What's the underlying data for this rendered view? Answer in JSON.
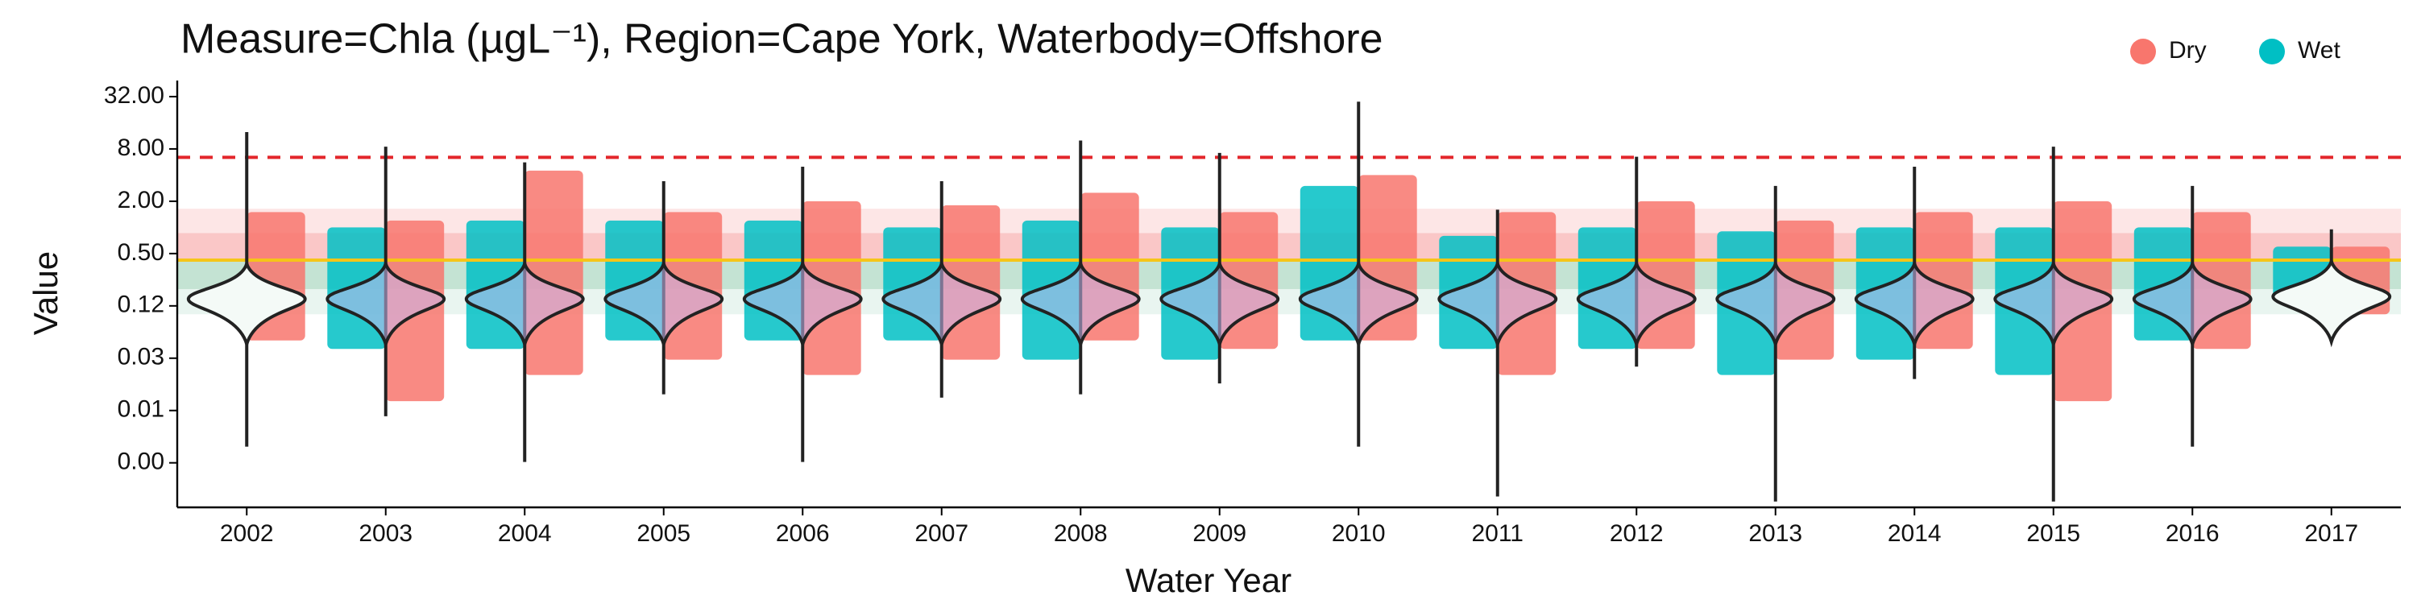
{
  "chart_data": {
    "type": "violin",
    "title": "Measure=Chla (µgL⁻¹), Region=Cape York, Waterbody=Offshore",
    "x_label": "Water Year",
    "y_label": "Value",
    "y_scale": "log",
    "legend_position": "top-right",
    "categories": [
      "2002",
      "2003",
      "2004",
      "2005",
      "2006",
      "2007",
      "2008",
      "2009",
      "2010",
      "2011",
      "2012",
      "2013",
      "2014",
      "2015",
      "2016",
      "2017"
    ],
    "ylim": [
      0.0006,
      49
    ],
    "yticks": [
      {
        "value": 32,
        "label": "32.00"
      },
      {
        "value": 8,
        "label": "8.00"
      },
      {
        "value": 2,
        "label": "2.00"
      },
      {
        "value": 0.5,
        "label": "0.50"
      },
      {
        "value": 0.125,
        "label": "0.12"
      },
      {
        "value": 0.03125,
        "label": "0.03"
      },
      {
        "value": 0.0078125,
        "label": "0.01"
      },
      {
        "value": 0.001953125,
        "label": "0.00"
      }
    ],
    "violin": {
      "color": "#c9b8f0",
      "min": [
        0.003,
        0.0067,
        0.002,
        0.012,
        0.002,
        0.011,
        0.012,
        0.016,
        0.003,
        0.0008,
        0.025,
        0.0007,
        0.018,
        0.0007,
        0.003,
        0.07
      ],
      "median": [
        0.15,
        0.15,
        0.15,
        0.15,
        0.15,
        0.15,
        0.15,
        0.15,
        0.15,
        0.15,
        0.15,
        0.15,
        0.15,
        0.15,
        0.15,
        0.16
      ],
      "max": [
        12.5,
        8.5,
        5.6,
        3.4,
        5.0,
        3.4,
        10,
        7.2,
        28,
        1.6,
        6.5,
        3.0,
        5.0,
        8.5,
        3.0,
        0.95
      ]
    },
    "series": [
      {
        "name": "Dry",
        "color": "#f8766d",
        "low": [
          0.05,
          0.01,
          0.02,
          0.03,
          0.02,
          0.03,
          0.05,
          0.04,
          0.05,
          0.02,
          0.04,
          0.03,
          0.04,
          0.01,
          0.04,
          0.1
        ],
        "high": [
          1.5,
          1.2,
          4.5,
          1.5,
          2.0,
          1.8,
          2.5,
          1.5,
          4.0,
          1.5,
          2.0,
          1.2,
          1.5,
          2.0,
          1.5,
          0.6
        ]
      },
      {
        "name": "Wet",
        "color": "#00bfc4",
        "low": [
          null,
          0.04,
          0.04,
          0.05,
          0.05,
          0.05,
          0.03,
          0.03,
          0.05,
          0.04,
          0.04,
          0.02,
          0.03,
          0.02,
          0.05,
          0.15
        ],
        "high": [
          null,
          1.0,
          1.2,
          1.2,
          1.2,
          1.0,
          1.2,
          1.0,
          3.0,
          0.8,
          1.0,
          0.9,
          1.0,
          1.0,
          1.0,
          0.6
        ]
      }
    ],
    "bands": [
      {
        "low": 0.86,
        "high": 1.64,
        "color": "#fde0e0"
      },
      {
        "low": 0.42,
        "high": 0.86,
        "color": "#f9b9b9"
      },
      {
        "low": 0.195,
        "high": 0.42,
        "color": "#b5dcc8"
      },
      {
        "low": 0.1,
        "high": 0.195,
        "color": "#e3f2ec"
      }
    ],
    "reference_lines": [
      {
        "value": 6.4,
        "color": "#e3262b",
        "dash": true
      },
      {
        "value": 0.42,
        "color": "#f5c518",
        "dash": false
      }
    ]
  }
}
